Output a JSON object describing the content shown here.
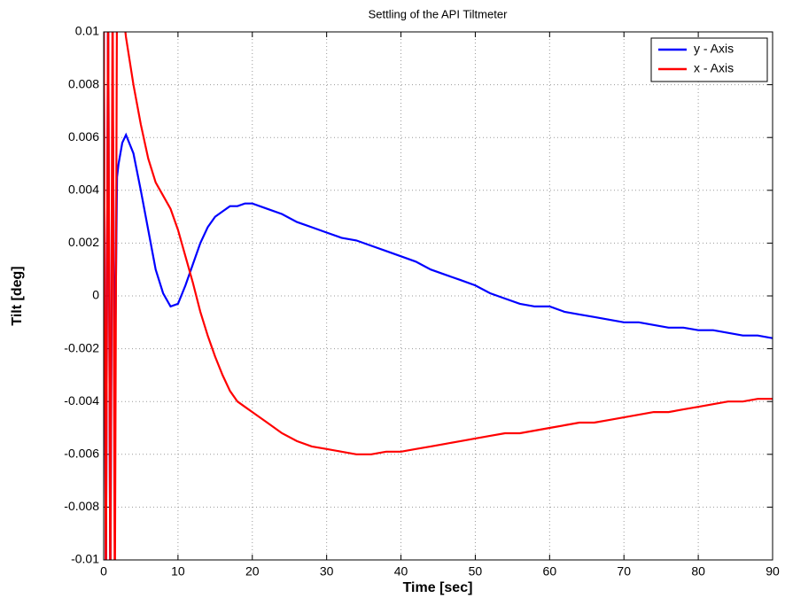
{
  "chart_data": {
    "type": "line",
    "title": "Settling of the API Tiltmeter",
    "xlabel": "Time [sec]",
    "ylabel": "Tilt [deg]",
    "x": [
      0,
      0.3,
      0.6,
      0.9,
      1.2,
      1.5,
      1.8,
      2,
      2.5,
      3,
      4,
      5,
      6,
      7,
      8,
      9,
      10,
      11,
      12,
      13,
      14,
      15,
      16,
      17,
      18,
      19,
      20,
      22,
      24,
      26,
      28,
      30,
      32,
      34,
      36,
      38,
      40,
      42,
      44,
      46,
      48,
      50,
      52,
      54,
      56,
      58,
      60,
      62,
      64,
      66,
      68,
      70,
      72,
      74,
      76,
      78,
      80,
      82,
      84,
      86,
      88,
      90
    ],
    "series": [
      {
        "name": "y - Axis",
        "color": "#0000ff",
        "values": [
          0.012,
          -0.012,
          0.012,
          -0.012,
          0.008,
          -0.0034,
          0.0045,
          0.005,
          0.0058,
          0.0061,
          0.0054,
          0.004,
          0.0025,
          0.001,
          0.0001,
          -0.0004,
          -0.0003,
          0.0004,
          0.0012,
          0.002,
          0.0026,
          0.003,
          0.0032,
          0.0034,
          0.0034,
          0.0035,
          0.0035,
          0.0033,
          0.0031,
          0.0028,
          0.0026,
          0.0024,
          0.0022,
          0.0021,
          0.0019,
          0.0017,
          0.0015,
          0.0013,
          0.001,
          0.0008,
          0.0006,
          0.0004,
          0.0001,
          -0.0001,
          -0.0003,
          -0.0004,
          -0.0004,
          -0.0006,
          -0.0007,
          -0.0008,
          -0.0009,
          -0.001,
          -0.001,
          -0.0011,
          -0.0012,
          -0.0012,
          -0.0013,
          -0.0013,
          -0.0014,
          -0.0015,
          -0.0015,
          -0.0016
        ]
      },
      {
        "name": "x - Axis",
        "color": "#ff0000",
        "values": [
          0.012,
          -0.012,
          0.012,
          -0.012,
          0.012,
          -0.012,
          0.012,
          0.012,
          0.011,
          0.0098,
          0.008,
          0.0065,
          0.0052,
          0.0043,
          0.0038,
          0.0033,
          0.0025,
          0.0015,
          0.0005,
          -0.0006,
          -0.0015,
          -0.0023,
          -0.003,
          -0.0036,
          -0.004,
          -0.0042,
          -0.0044,
          -0.0048,
          -0.0052,
          -0.0055,
          -0.0057,
          -0.0058,
          -0.0059,
          -0.006,
          -0.006,
          -0.0059,
          -0.0059,
          -0.0058,
          -0.0057,
          -0.0056,
          -0.0055,
          -0.0054,
          -0.0053,
          -0.0052,
          -0.0052,
          -0.0051,
          -0.005,
          -0.0049,
          -0.0048,
          -0.0048,
          -0.0047,
          -0.0046,
          -0.0045,
          -0.0044,
          -0.0044,
          -0.0043,
          -0.0042,
          -0.0041,
          -0.004,
          -0.004,
          -0.0039,
          -0.0039
        ]
      }
    ],
    "xlim": [
      0,
      90
    ],
    "xticks": [
      0,
      10,
      20,
      30,
      40,
      50,
      60,
      70,
      80,
      90
    ],
    "ylim": [
      -0.01,
      0.01
    ],
    "yticks": [
      -0.01,
      -0.008,
      -0.006,
      -0.004,
      -0.002,
      0,
      0.002,
      0.004,
      0.006,
      0.008,
      0.01
    ],
    "grid": true,
    "legend": "northeast"
  }
}
